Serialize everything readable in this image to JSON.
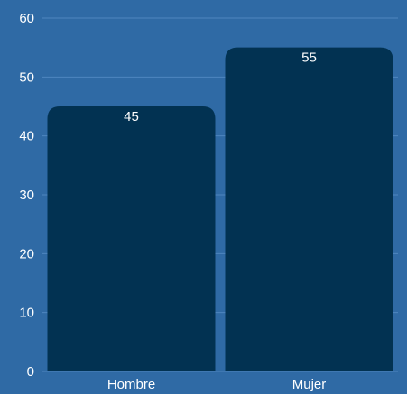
{
  "colors": {
    "background": "#2f6aa5",
    "bar": "#023252",
    "grid": "#4f86bf",
    "text": "#ffffff"
  },
  "chart_data": {
    "type": "bar",
    "categories": [
      "Hombre",
      "Mujer"
    ],
    "values": [
      45,
      55
    ],
    "data_labels": [
      "45",
      "55"
    ],
    "ylim": [
      0,
      60
    ],
    "yticks": [
      0,
      10,
      20,
      30,
      40,
      50,
      60
    ],
    "ytick_labels": [
      "0",
      "10",
      "20",
      "30",
      "40",
      "50",
      "60"
    ],
    "grid": true,
    "legend": "none",
    "title": "",
    "xlabel": "",
    "ylabel": ""
  }
}
